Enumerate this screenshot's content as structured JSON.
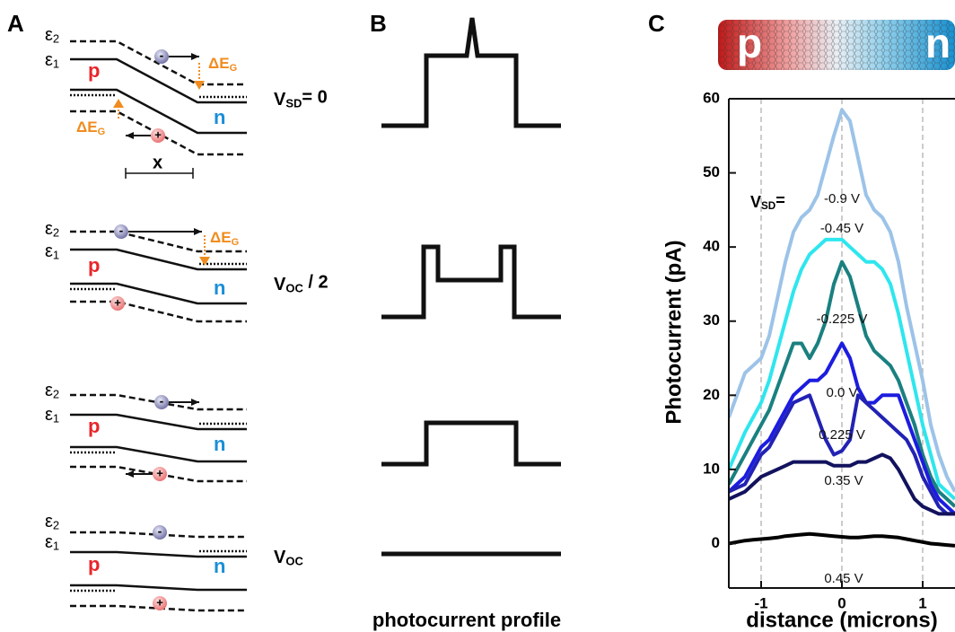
{
  "panel_a": {
    "label": "A",
    "diagrams": [
      {
        "eps2": {
          "main": "ε",
          "sub": "2"
        },
        "eps1": {
          "main": "ε",
          "sub": "1"
        },
        "p": "p",
        "n": "n",
        "electron": "-",
        "hole": "+",
        "delta_eg": [
          {
            "main": "ΔE",
            "sub": "G"
          },
          {
            "main": "ΔE",
            "sub": "G"
          }
        ],
        "x": "x"
      },
      {
        "eps2": {
          "main": "ε",
          "sub": "2"
        },
        "eps1": {
          "main": "ε",
          "sub": "1"
        },
        "p": "p",
        "n": "n",
        "electron": "-",
        "hole": "+",
        "delta_eg": [
          {
            "main": "ΔE",
            "sub": "G"
          }
        ]
      },
      {
        "eps2": {
          "main": "ε",
          "sub": "2"
        },
        "eps1": {
          "main": "ε",
          "sub": "1"
        },
        "p": "p",
        "n": "n",
        "electron": "-",
        "hole": "+"
      },
      {
        "eps2": {
          "main": "ε",
          "sub": "2"
        },
        "eps1": {
          "main": "ε",
          "sub": "1"
        },
        "p": "p",
        "n": "n",
        "electron": "-",
        "hole": "+"
      }
    ],
    "conditions": [
      {
        "main": "V",
        "sub": "SD",
        "rest": "= 0"
      },
      {
        "main": "V",
        "sub": "OC",
        "rest": " / 2"
      },
      {
        "main": "V",
        "sub": "OC"
      }
    ]
  },
  "panel_b": {
    "label": "B",
    "caption": "photocurrent profile"
  },
  "chart_data": {
    "type": "line",
    "label": "C",
    "image_labels": [
      "p",
      "n"
    ],
    "y_label": "Photocurrent (pA)",
    "x_label": "distance (microns)",
    "annotation": {
      "main": "V",
      "sub": "SD",
      "rest": "="
    },
    "x": [
      -1.4,
      -1.3,
      -1.2,
      -1.1,
      -1.0,
      -0.9,
      -0.8,
      -0.7,
      -0.6,
      -0.5,
      -0.4,
      -0.3,
      -0.2,
      -0.1,
      0,
      0.1,
      0.2,
      0.3,
      0.4,
      0.5,
      0.6,
      0.7,
      0.8,
      0.9,
      1.0,
      1.1,
      1.2,
      1.3,
      1.4
    ],
    "xlim": [
      -1.4,
      1.4
    ],
    "ylim": [
      -6,
      60
    ],
    "xticks": [
      -1,
      0,
      1
    ],
    "yticks": [
      0,
      10,
      20,
      30,
      40,
      50,
      60
    ],
    "xgrid": true,
    "series": [
      {
        "name": "-0.9 V",
        "color": "#9cc3e8",
        "values": [
          17,
          20,
          23,
          24,
          25,
          28,
          33,
          38,
          42,
          44,
          45,
          47,
          51,
          55,
          58.5,
          57,
          52,
          47,
          45,
          44,
          42,
          38,
          32,
          27,
          22,
          16,
          12,
          9,
          7
        ]
      },
      {
        "name": "-0.45 V",
        "color": "#2ee6ee",
        "values": [
          10,
          12.5,
          15,
          17,
          19,
          22,
          26,
          30,
          34,
          37,
          39,
          40,
          41,
          41,
          41,
          40,
          39,
          38,
          38,
          37,
          35,
          31,
          26,
          21,
          16,
          12,
          8,
          7,
          6
        ]
      },
      {
        "name": "-0.225 V",
        "color": "#1a8080",
        "values": [
          8,
          10,
          12,
          14,
          16,
          18,
          21,
          24,
          27,
          27,
          25,
          27,
          30,
          35,
          38,
          36,
          32,
          28,
          26,
          25,
          24,
          22,
          19,
          16,
          12,
          9,
          7,
          6,
          5
        ]
      },
      {
        "name": "0.0 V",
        "color": "#1c1ce0",
        "values": [
          7,
          8,
          9,
          11,
          13,
          14,
          16,
          18,
          20,
          21,
          22,
          22,
          23,
          25,
          27,
          25,
          21,
          19,
          19,
          20,
          20,
          20,
          17,
          14,
          11,
          8,
          6,
          5,
          4
        ]
      },
      {
        "name": "0.225 V",
        "color": "#2222b4",
        "values": [
          7,
          7.5,
          8,
          10,
          12,
          13,
          15,
          17,
          19,
          19.5,
          20,
          17,
          14,
          12,
          12.5,
          14,
          20,
          19,
          18,
          17,
          16,
          15,
          14,
          12,
          9,
          7,
          5,
          4,
          4
        ]
      },
      {
        "name": "0.35 V",
        "color": "#12125e",
        "values": [
          6,
          6.5,
          7,
          8,
          9,
          9.5,
          10,
          10.5,
          11,
          11,
          11,
          11,
          11,
          10.5,
          10.5,
          10.5,
          11,
          11,
          11.5,
          12,
          11.5,
          10,
          8,
          6,
          5,
          4.5,
          4,
          4,
          4
        ]
      },
      {
        "name": "0.45 V",
        "color": "#000000",
        "values": [
          0,
          0.2,
          0.4,
          0.5,
          0.6,
          0.7,
          0.8,
          1.0,
          1.1,
          1.2,
          1.3,
          1.2,
          1.1,
          1.0,
          0.9,
          0.8,
          0.8,
          0.9,
          1.0,
          1.0,
          0.9,
          0.8,
          0.6,
          0.4,
          0.2,
          0,
          -0.1,
          -0.2,
          -0.3
        ]
      }
    ]
  }
}
